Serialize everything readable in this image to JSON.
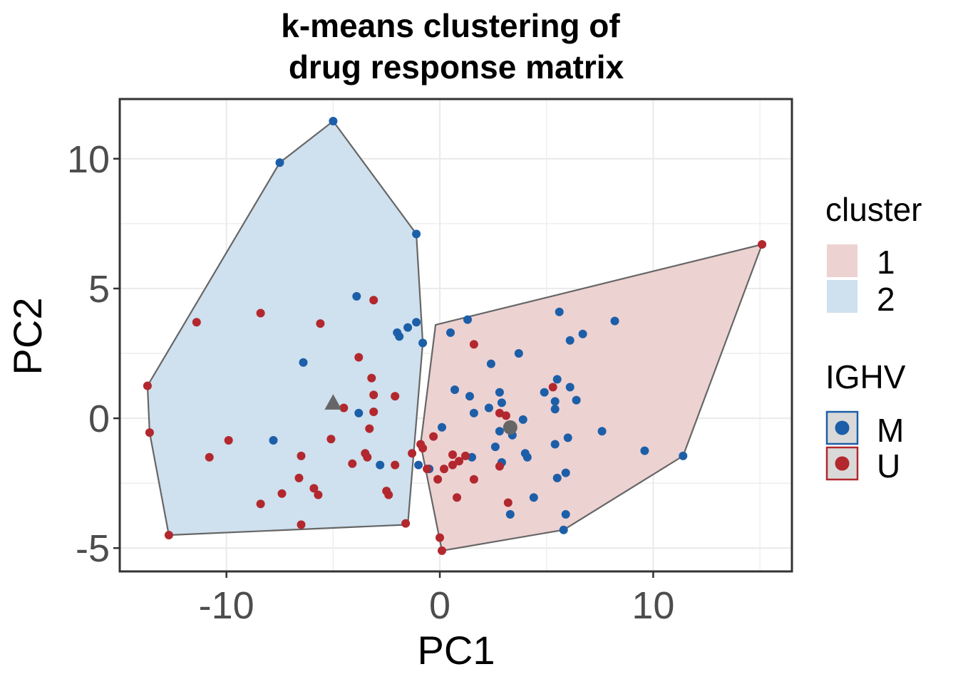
{
  "chart_data": {
    "type": "scatter",
    "title_lines": [
      "k-means clustering of",
      "drug response matrix"
    ],
    "xlabel": "PC1",
    "ylabel": "PC2",
    "xlim": [
      -15,
      16.5
    ],
    "ylim": [
      -5.9,
      12.3
    ],
    "x_ticks": [
      -10,
      0,
      10
    ],
    "x_tick_labels": [
      "-10",
      "0",
      "10"
    ],
    "y_ticks": [
      -5,
      0,
      5,
      10
    ],
    "y_tick_labels": [
      "-5",
      "0",
      "5",
      "10"
    ],
    "grid": true,
    "legend_position": "right",
    "cluster_legend": {
      "title": "cluster",
      "items": [
        {
          "label": "1",
          "color": "#edd2d2"
        },
        {
          "label": "2",
          "color": "#cfe0ee"
        }
      ]
    },
    "ighv_legend": {
      "title": "IGHV",
      "items": [
        {
          "label": "M",
          "color": "#1c5fa8",
          "border": "#1c5fa8"
        },
        {
          "label": "U",
          "color": "#b2282e",
          "border": "#b2282e"
        }
      ]
    },
    "hulls": [
      {
        "cluster": "1",
        "fill": "#edd2d2",
        "points": [
          [
            -0.2,
            3.6
          ],
          [
            15.1,
            6.7
          ],
          [
            11.4,
            -1.45
          ],
          [
            5.8,
            -4.3
          ],
          [
            0.1,
            -5.1
          ],
          [
            -0.9,
            -1.0
          ]
        ]
      },
      {
        "cluster": "2",
        "fill": "#cfe0ee",
        "points": [
          [
            -5.0,
            11.45
          ],
          [
            -1.1,
            7.1
          ],
          [
            -0.8,
            2.9
          ],
          [
            -1.5,
            -4.1
          ],
          [
            -12.7,
            -4.5
          ],
          [
            -13.6,
            -0.55
          ],
          [
            -13.7,
            1.25
          ],
          [
            -7.5,
            9.85
          ]
        ]
      }
    ],
    "centroids": [
      {
        "cluster": "1",
        "shape": "circle",
        "x": 3.3,
        "y": -0.35,
        "color": "#666666"
      },
      {
        "cluster": "2",
        "shape": "triangle",
        "x": -5.0,
        "y": 0.6,
        "color": "#666666"
      }
    ],
    "series": [
      {
        "name": "M",
        "color": "#1c5fa8",
        "points": [
          [
            -5.0,
            11.45
          ],
          [
            -7.5,
            9.85
          ],
          [
            -1.1,
            7.1
          ],
          [
            -3.9,
            4.7
          ],
          [
            -1.1,
            3.7
          ],
          [
            -2.0,
            3.3
          ],
          [
            -1.5,
            3.5
          ],
          [
            -1.9,
            3.15
          ],
          [
            -0.8,
            2.9
          ],
          [
            -6.4,
            2.15
          ],
          [
            -3.8,
            0.2
          ],
          [
            -7.8,
            -0.85
          ],
          [
            -2.8,
            -1.8
          ],
          [
            -1.0,
            -1.8
          ],
          [
            1.3,
            3.8
          ],
          [
            0.5,
            3.3
          ],
          [
            2.4,
            2.1
          ],
          [
            3.7,
            2.5
          ],
          [
            0.7,
            1.1
          ],
          [
            1.4,
            0.85
          ],
          [
            2.8,
            1.0
          ],
          [
            5.5,
            1.5
          ],
          [
            5.4,
            0.65
          ],
          [
            6.4,
            0.7
          ],
          [
            6.1,
            1.2
          ],
          [
            5.4,
            0.35
          ],
          [
            2.9,
            0.6
          ],
          [
            2.3,
            0.4
          ],
          [
            1.6,
            0.2
          ],
          [
            3.9,
            -0.05
          ],
          [
            4.9,
            1.0
          ],
          [
            3.4,
            -0.65
          ],
          [
            0.1,
            -0.35
          ],
          [
            2.8,
            -0.5
          ],
          [
            6.0,
            -0.75
          ],
          [
            7.6,
            -0.5
          ],
          [
            2.6,
            -1.1
          ],
          [
            4.0,
            -1.35
          ],
          [
            4.1,
            -1.5
          ],
          [
            5.4,
            -1.0
          ],
          [
            1.5,
            -1.5
          ],
          [
            2.9,
            -1.7
          ],
          [
            9.6,
            -1.25
          ],
          [
            11.4,
            -1.45
          ],
          [
            5.9,
            -2.1
          ],
          [
            5.5,
            -2.3
          ],
          [
            4.4,
            -3.05
          ],
          [
            5.9,
            -3.7
          ],
          [
            3.3,
            -3.7
          ],
          [
            5.8,
            -4.3
          ],
          [
            -0.5,
            -1.95
          ],
          [
            5.6,
            4.1
          ],
          [
            8.2,
            3.75
          ],
          [
            6.7,
            3.25
          ],
          [
            6.1,
            3.0
          ]
        ]
      },
      {
        "name": "U",
        "color": "#b2282e",
        "points": [
          [
            15.1,
            6.7
          ],
          [
            1.6,
            2.85
          ],
          [
            5.3,
            1.2
          ],
          [
            2.8,
            0.2
          ],
          [
            3.1,
            0.1
          ],
          [
            -0.3,
            -0.7
          ],
          [
            -0.9,
            -1.0
          ],
          [
            -0.8,
            -1.15
          ],
          [
            0.6,
            -1.4
          ],
          [
            1.2,
            -1.45
          ],
          [
            0.9,
            -1.65
          ],
          [
            0.2,
            -1.95
          ],
          [
            -0.6,
            -1.95
          ],
          [
            0.6,
            -1.8
          ],
          [
            2.8,
            -1.85
          ],
          [
            1.6,
            -2.35
          ],
          [
            -0.1,
            -2.35
          ],
          [
            0.8,
            -3.05
          ],
          [
            3.2,
            -3.25
          ],
          [
            0.0,
            -4.6
          ],
          [
            0.1,
            -5.1
          ],
          [
            3.3,
            -0.4
          ],
          [
            -13.7,
            1.25
          ],
          [
            -13.6,
            -0.55
          ],
          [
            -11.4,
            3.7
          ],
          [
            -8.4,
            4.05
          ],
          [
            -5.6,
            3.65
          ],
          [
            -3.1,
            4.55
          ],
          [
            -3.8,
            2.35
          ],
          [
            -3.2,
            1.55
          ],
          [
            -3.1,
            0.9
          ],
          [
            -2.1,
            0.85
          ],
          [
            -4.5,
            0.4
          ],
          [
            -3.1,
            0.25
          ],
          [
            -3.3,
            -0.4
          ],
          [
            -5.1,
            -0.8
          ],
          [
            -9.9,
            -0.85
          ],
          [
            -10.8,
            -1.5
          ],
          [
            -6.5,
            -1.45
          ],
          [
            -3.5,
            -1.35
          ],
          [
            -3.4,
            -1.5
          ],
          [
            -4.1,
            -1.75
          ],
          [
            -2.1,
            -1.8
          ],
          [
            -1.3,
            -1.35
          ],
          [
            -6.6,
            -2.3
          ],
          [
            -5.9,
            -2.7
          ],
          [
            -5.7,
            -2.95
          ],
          [
            -7.4,
            -2.9
          ],
          [
            -2.5,
            -2.8
          ],
          [
            -2.4,
            -2.95
          ],
          [
            -8.4,
            -3.3
          ],
          [
            -6.5,
            -4.1
          ],
          [
            -1.6,
            -4.05
          ],
          [
            -12.7,
            -4.5
          ]
        ]
      }
    ]
  }
}
